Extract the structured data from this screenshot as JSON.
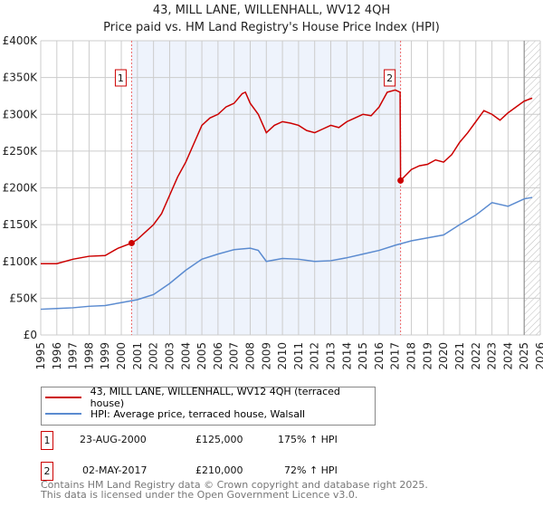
{
  "title": "43, MILL LANE, WILLENHALL, WV12 4QH",
  "subtitle": "Price paid vs. HM Land Registry's House Price Index (HPI)",
  "chart_data": {
    "type": "line",
    "title": "43, MILL LANE, WILLENHALL, WV12 4QH — Price paid vs. HM Land Registry's House Price Index (HPI)",
    "xlim": [
      1995,
      2026
    ],
    "ylim": [
      0,
      400000
    ],
    "x_ticks": [
      "1995",
      "1996",
      "1997",
      "1998",
      "1999",
      "2000",
      "2001",
      "2002",
      "2003",
      "2004",
      "2005",
      "2006",
      "2007",
      "2008",
      "2009",
      "2010",
      "2011",
      "2012",
      "2013",
      "2014",
      "2015",
      "2016",
      "2017",
      "2018",
      "2019",
      "2020",
      "2021",
      "2022",
      "2023",
      "2024",
      "2025",
      "2026"
    ],
    "y_ticks": [
      {
        "v": 0,
        "label": "£0"
      },
      {
        "v": 50000,
        "label": "£50K"
      },
      {
        "v": 100000,
        "label": "£100K"
      },
      {
        "v": 150000,
        "label": "£150K"
      },
      {
        "v": 200000,
        "label": "£200K"
      },
      {
        "v": 250000,
        "label": "£250K"
      },
      {
        "v": 300000,
        "label": "£300K"
      },
      {
        "v": 350000,
        "label": "£350K"
      },
      {
        "v": 400000,
        "label": "£400K"
      }
    ],
    "grid": true,
    "shaded_range": [
      2000.64,
      2017.33
    ],
    "forecast_hatch_from": 2025.0,
    "series": [
      {
        "name": "43, MILL LANE, WILLENHALL, WV12 4QH (terraced house)",
        "color": "#cc0000",
        "x": [
          1995,
          1996,
          1997,
          1998,
          1999,
          1999.8,
          2000.64,
          2001,
          2002,
          2002.5,
          2003,
          2003.5,
          2004,
          2004.5,
          2005,
          2005.5,
          2006,
          2006.5,
          2007,
          2007.5,
          2007.7,
          2008,
          2008.5,
          2009,
          2009.5,
          2010,
          2010.5,
          2011,
          2011.5,
          2012,
          2012.5,
          2013,
          2013.5,
          2014,
          2014.5,
          2015,
          2015.5,
          2016,
          2016.5,
          2017,
          2017.3,
          2017.33,
          2018,
          2018.5,
          2019,
          2019.5,
          2020,
          2020.5,
          2021,
          2021.5,
          2022,
          2022.5,
          2023,
          2023.5,
          2024,
          2024.5,
          2025,
          2025.5
        ],
        "y": [
          97000,
          97000,
          103000,
          107000,
          108000,
          118000,
          125000,
          130000,
          150000,
          165000,
          190000,
          215000,
          235000,
          260000,
          285000,
          295000,
          300000,
          310000,
          315000,
          328000,
          330000,
          315000,
          300000,
          275000,
          285000,
          290000,
          288000,
          285000,
          278000,
          275000,
          280000,
          285000,
          282000,
          290000,
          295000,
          300000,
          298000,
          310000,
          330000,
          333000,
          330000,
          210000,
          225000,
          230000,
          232000,
          238000,
          235000,
          245000,
          262000,
          275000,
          290000,
          305000,
          300000,
          292000,
          302000,
          310000,
          318000,
          322000
        ]
      },
      {
        "name": "HPI: Average price, terraced house, Walsall",
        "color": "#5b8bd0",
        "x": [
          1995,
          1996,
          1997,
          1998,
          1999,
          2000,
          2001,
          2002,
          2003,
          2004,
          2005,
          2006,
          2007,
          2008,
          2008.5,
          2009,
          2010,
          2011,
          2012,
          2013,
          2014,
          2015,
          2016,
          2017,
          2018,
          2019,
          2020,
          2021,
          2022,
          2023,
          2024,
          2025,
          2025.5
        ],
        "y": [
          35000,
          36000,
          37000,
          39000,
          40000,
          44000,
          48000,
          55000,
          70000,
          88000,
          103000,
          110000,
          116000,
          118000,
          115000,
          100000,
          104000,
          103000,
          100000,
          101000,
          105000,
          110000,
          115000,
          122000,
          128000,
          132000,
          136000,
          150000,
          163000,
          180000,
          175000,
          185000,
          187000
        ]
      }
    ],
    "annotations": [
      {
        "label": "1",
        "x": 2000.64,
        "y": 125000
      },
      {
        "label": "2",
        "x": 2017.33,
        "y": 210000
      }
    ]
  },
  "legend": {
    "items": [
      "43, MILL LANE, WILLENHALL, WV12 4QH (terraced house)",
      "HPI: Average price, terraced house, Walsall"
    ]
  },
  "transactions": [
    {
      "num": "1",
      "date": "23-AUG-2000",
      "price": "£125,000",
      "hpi": "175% ↑ HPI"
    },
    {
      "num": "2",
      "date": "02-MAY-2017",
      "price": "£210,000",
      "hpi": "72% ↑ HPI"
    }
  ],
  "footer": {
    "line1": "Contains HM Land Registry data © Crown copyright and database right 2025.",
    "line2": "This data is licensed under the Open Government Licence v3.0."
  }
}
